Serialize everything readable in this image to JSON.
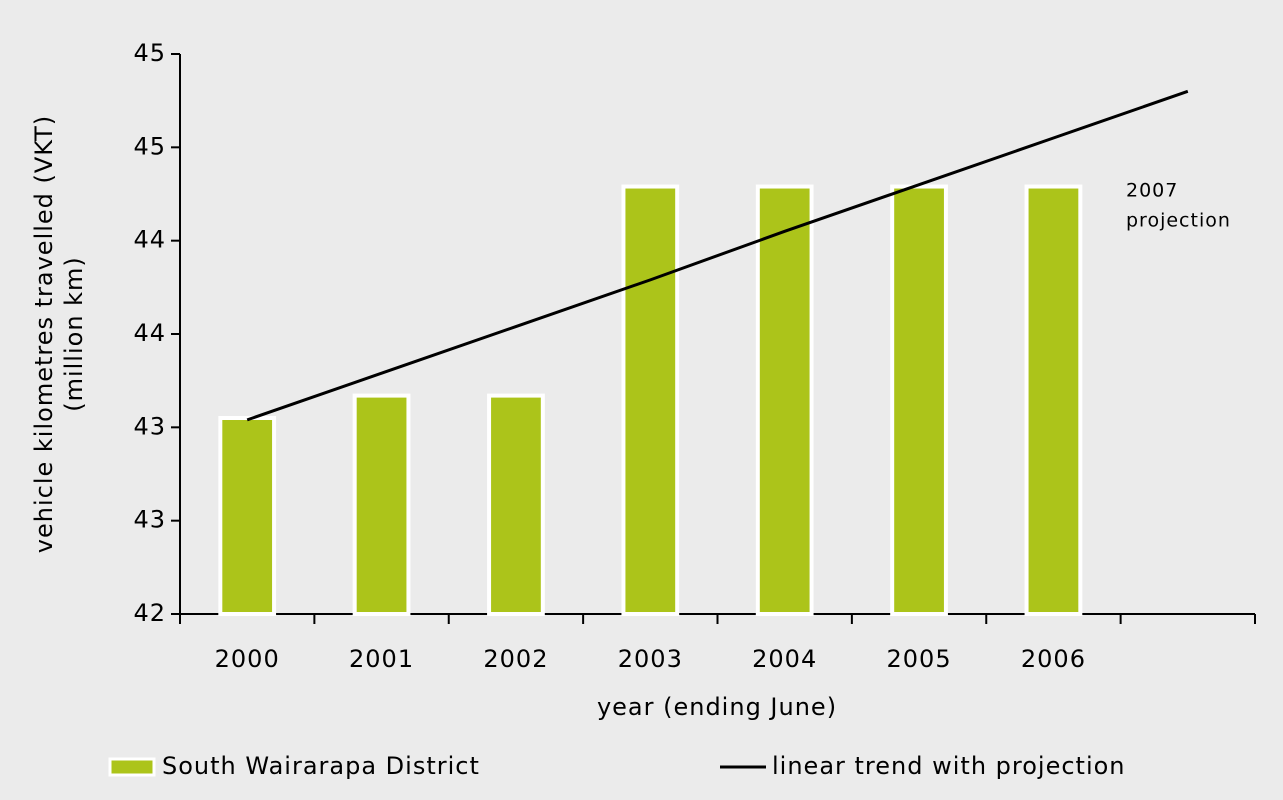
{
  "chart_data": {
    "type": "bar",
    "categories": [
      "2000",
      "2001",
      "2002",
      "2003",
      "2004",
      "2005",
      "2006",
      null
    ],
    "series": [
      {
        "name": "South Wairarapa District",
        "type": "bar",
        "color": "#acc41a",
        "values": [
          43.05,
          43.17,
          43.17,
          44.29,
          44.29,
          44.29,
          44.29,
          null
        ]
      },
      {
        "name": "linear trend with projection",
        "type": "line",
        "color": "#000000",
        "values": [
          43.04,
          43.29,
          43.54,
          43.79,
          44.05,
          44.3,
          44.55,
          44.8
        ]
      }
    ],
    "ylim": [
      42,
      45
    ],
    "yticks": [
      42,
      {
        "value": 42.5,
        "label": "43"
      },
      43,
      {
        "value": 43.5,
        "label": "44"
      },
      44,
      {
        "value": 44.5,
        "label": "45"
      },
      45
    ],
    "ylabel": [
      "vehicle kilometres travelled (VKT)",
      "(million km)"
    ],
    "xlabel": "year (ending June)",
    "annotation": [
      "2007",
      "projection"
    ],
    "legend": "bottom"
  }
}
